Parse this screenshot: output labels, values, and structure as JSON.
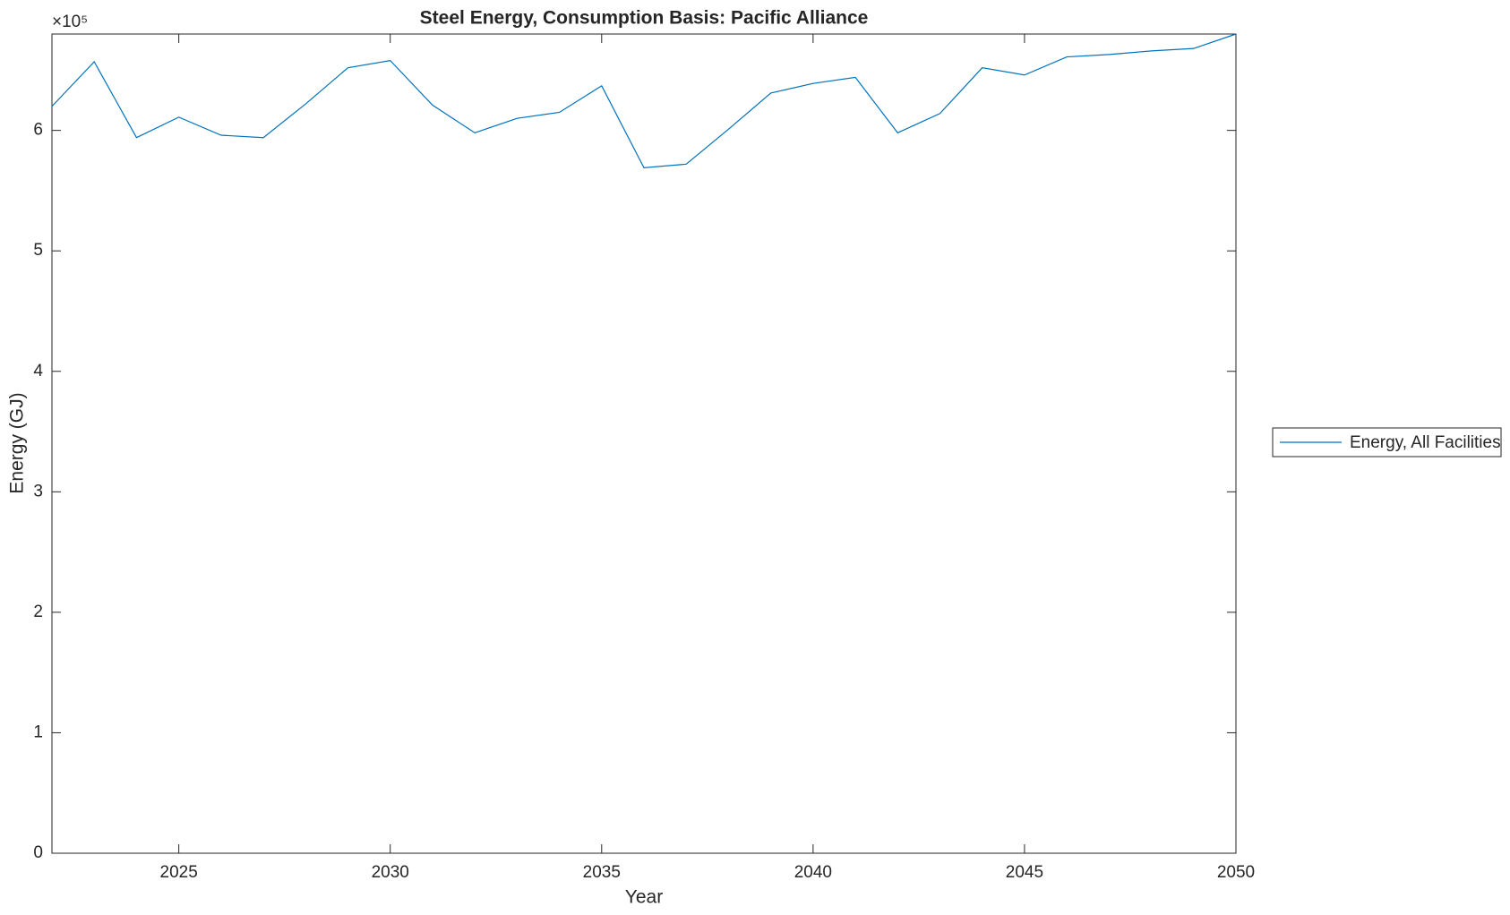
{
  "chart_data": {
    "type": "line",
    "title": "Steel Energy, Consumption Basis: Pacific Alliance",
    "xlabel": "Year",
    "ylabel": "Energy (GJ)",
    "y_exponent": "×10⁵",
    "x": [
      2022,
      2023,
      2024,
      2025,
      2026,
      2027,
      2028,
      2029,
      2030,
      2031,
      2032,
      2033,
      2034,
      2035,
      2036,
      2037,
      2038,
      2039,
      2040,
      2041,
      2042,
      2043,
      2044,
      2045,
      2046,
      2047,
      2048,
      2049,
      2050
    ],
    "series": [
      {
        "name": "Energy, All Facilities",
        "color": "#0072BD",
        "values": [
          620000,
          657000,
          594000,
          611000,
          596000,
          594000,
          622000,
          652000,
          658000,
          621000,
          598000,
          610000,
          615000,
          637000,
          569000,
          572000,
          601000,
          631000,
          639000,
          644000,
          598000,
          614000,
          652000,
          646000,
          661000,
          663000,
          666000,
          668000,
          680000
        ]
      }
    ],
    "xlim": [
      2022,
      2050
    ],
    "xticks": [
      2025,
      2030,
      2035,
      2040,
      2045,
      2050
    ],
    "ylim": [
      0,
      680000
    ],
    "yticks": [
      {
        "value": 0,
        "label": "0"
      },
      {
        "value": 100000,
        "label": "1"
      },
      {
        "value": 200000,
        "label": "2"
      },
      {
        "value": 300000,
        "label": "3"
      },
      {
        "value": 400000,
        "label": "4"
      },
      {
        "value": 500000,
        "label": "5"
      },
      {
        "value": 600000,
        "label": "6"
      }
    ],
    "grid": false,
    "legend": "outside-right"
  }
}
